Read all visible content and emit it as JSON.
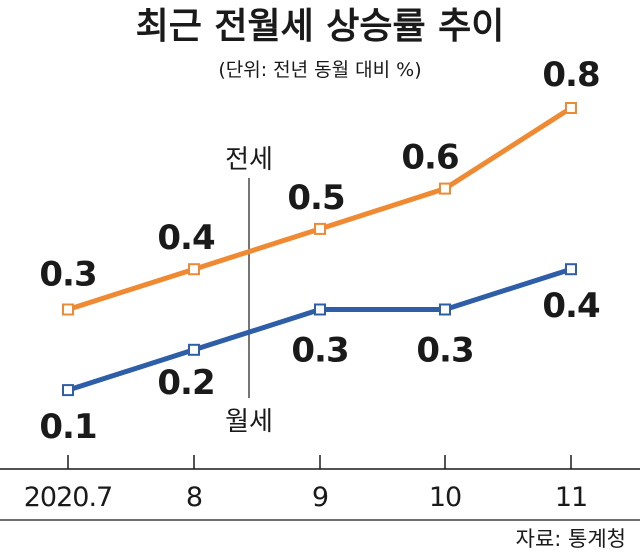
{
  "chart_data": {
    "type": "line",
    "title": "최근 전월세 상승률 추이",
    "unit_note": "(단위: 전년 동월 대비 %)",
    "categories": [
      "2020.7",
      "8",
      "9",
      "10",
      "11"
    ],
    "series": [
      {
        "name": "전세",
        "color": "#f08a32",
        "values": [
          0.3,
          0.4,
          0.5,
          0.6,
          0.8
        ],
        "labels": [
          "0.3",
          "0.4",
          "0.5",
          "0.6",
          "0.8"
        ]
      },
      {
        "name": "월세",
        "color": "#2f5ea8",
        "values": [
          0.1,
          0.2,
          0.3,
          0.3,
          0.4
        ],
        "labels": [
          "0.1",
          "0.2",
          "0.3",
          "0.3",
          "0.4"
        ]
      }
    ],
    "source": "자료: 통계청",
    "grid": false,
    "ylim": [
      0,
      0.9
    ]
  }
}
